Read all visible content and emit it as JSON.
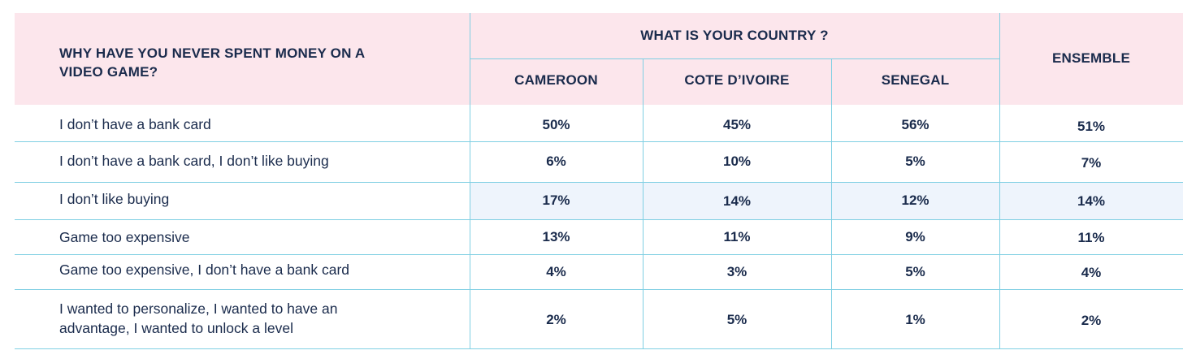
{
  "table": {
    "question": "WHY HAVE YOU NEVER SPENT MONEY ON A VIDEO GAME?",
    "group_header": "WHAT IS YOUR COUNTRY ?",
    "columns": [
      "CAMEROON",
      "COTE D’IVOIRE",
      "SENEGAL"
    ],
    "total_header": "ENSEMBLE",
    "rows": [
      {
        "label": "I don’t have a bank card",
        "values": [
          "50%",
          "45%",
          "56%"
        ],
        "total": "51%"
      },
      {
        "label": "I don’t have a bank card, I don’t like buying",
        "values": [
          "6%",
          "10%",
          "5%"
        ],
        "total": "7%"
      },
      {
        "label": "I don’t like buying",
        "values": [
          "17%",
          "14%",
          "12%"
        ],
        "total": "14%"
      },
      {
        "label": "Game too expensive",
        "values": [
          "13%",
          "11%",
          "9%"
        ],
        "total": "11%"
      },
      {
        "label": "Game too expensive, I don’t have a bank card",
        "values": [
          "4%",
          "3%",
          "5%"
        ],
        "total": "4%"
      },
      {
        "label": "I wanted to personalize, I wanted to have an advantage, I wanted to unlock a level",
        "values": [
          "2%",
          "5%",
          "1%"
        ],
        "total": "2%"
      }
    ]
  },
  "colors": {
    "header_bg": "#fce6ec",
    "grid_line": "#7fcfe3",
    "highlight_row": "#eef4fc",
    "text": "#1a2b4c"
  }
}
